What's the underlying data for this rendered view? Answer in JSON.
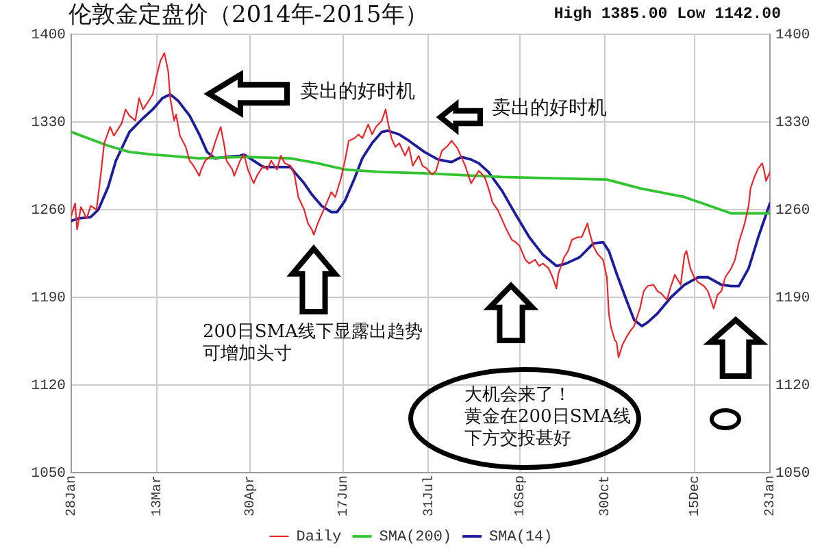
{
  "chart_data": {
    "type": "line",
    "title": "伦敦金定盘价（2014年-2015年）",
    "subtitle": "High 1385.00 Low 1142.00",
    "annotations": [
      "卖出的好时机",
      "卖出的好时机",
      "200日SMA线下显露出趋势可增加头寸",
      "大机会来了！",
      "黄金在200日SMA线下方交投甚好"
    ],
    "xlim": [
      "2014-01-28",
      "2015-01-23"
    ],
    "xticks": [
      {
        "value": "2014-01-28",
        "label": "28Jan"
      },
      {
        "value": "2014-03-13",
        "label": "13Mar"
      },
      {
        "value": "2014-04-30",
        "label": "30Apr"
      },
      {
        "value": "2014-06-17",
        "label": "17Jun"
      },
      {
        "value": "2014-07-31",
        "label": "31Jul"
      },
      {
        "value": "2014-09-16",
        "label": "16Sep"
      },
      {
        "value": "2014-10-30",
        "label": "30Oct"
      },
      {
        "value": "2014-12-15",
        "label": "15Dec"
      },
      {
        "value": "2015-01-23",
        "label": "23Jan"
      }
    ],
    "ylim": [
      1050,
      1400
    ],
    "yticks": [
      1050,
      1120,
      1190,
      1260,
      1330,
      1400
    ],
    "y2lim": [
      1050,
      1400
    ],
    "y2ticks": [
      1050,
      1120,
      1190,
      1260,
      1330,
      1400
    ],
    "grid": true,
    "legend": "bottom",
    "series": [
      {
        "name": "Daily",
        "color": "#e8262b",
        "x": [
          "2014-01-28",
          "2014-01-30",
          "2014-01-31",
          "2014-02-02",
          "2014-02-05",
          "2014-02-07",
          "2014-02-10",
          "2014-02-12",
          "2014-02-14",
          "2014-02-17",
          "2014-02-19",
          "2014-02-23",
          "2014-02-25",
          "2014-02-27",
          "2014-03-02",
          "2014-03-04",
          "2014-03-06",
          "2014-03-09",
          "2014-03-11",
          "2014-03-13",
          "2014-03-15",
          "2014-03-17",
          "2014-03-19",
          "2014-03-20",
          "2014-03-22",
          "2014-03-23",
          "2014-03-25",
          "2014-03-28",
          "2014-03-30",
          "2014-04-01",
          "2014-04-04",
          "2014-04-05",
          "2014-04-07",
          "2014-04-10",
          "2014-04-12",
          "2014-04-14",
          "2014-04-15",
          "2014-04-17",
          "2014-04-18",
          "2014-04-21",
          "2014-04-22",
          "2014-04-25",
          "2014-04-27",
          "2014-04-29",
          "2014-05-02",
          "2014-05-04",
          "2014-05-07",
          "2014-05-09",
          "2014-05-11",
          "2014-05-14",
          "2014-05-16",
          "2014-05-18",
          "2014-05-21",
          "2014-05-23",
          "2014-05-25",
          "2014-05-28",
          "2014-05-30",
          "2014-06-01",
          "2014-06-02",
          "2014-06-04",
          "2014-06-06",
          "2014-06-08",
          "2014-06-11",
          "2014-06-13",
          "2014-06-16",
          "2014-06-18",
          "2014-06-20",
          "2014-06-23",
          "2014-06-25",
          "2014-06-27",
          "2014-06-30",
          "2014-07-02",
          "2014-07-04",
          "2014-07-07",
          "2014-07-09",
          "2014-07-10",
          "2014-07-12",
          "2014-07-14",
          "2014-07-16",
          "2014-07-19",
          "2014-07-21",
          "2014-07-23",
          "2014-07-26",
          "2014-07-28",
          "2014-07-30",
          "2014-08-02",
          "2014-08-04",
          "2014-08-06",
          "2014-08-07",
          "2014-08-10",
          "2014-08-12",
          "2014-08-15",
          "2014-08-17",
          "2014-08-19",
          "2014-08-22",
          "2014-08-24",
          "2014-08-26",
          "2014-08-29",
          "2014-08-31",
          "2014-09-02",
          "2014-09-05",
          "2014-09-07",
          "2014-09-09",
          "2014-09-12",
          "2014-09-14",
          "2014-09-16",
          "2014-09-19",
          "2014-09-21",
          "2014-09-24",
          "2014-09-26",
          "2014-09-28",
          "2014-10-01",
          "2014-10-03",
          "2014-10-05",
          "2014-10-06",
          "2014-10-09",
          "2014-10-11",
          "2014-10-13",
          "2014-10-16",
          "2014-10-18",
          "2014-10-21",
          "2014-10-22",
          "2014-10-24",
          "2014-10-26",
          "2014-10-29",
          "2014-10-31",
          "2014-11-01",
          "2014-11-02",
          "2014-11-04",
          "2014-11-05",
          "2014-11-06",
          "2014-11-08",
          "2014-11-10",
          "2014-11-12",
          "2014-11-14",
          "2014-11-17",
          "2014-11-19",
          "2014-11-21",
          "2014-11-24",
          "2014-11-26",
          "2014-11-28",
          "2014-12-01",
          "2014-12-03",
          "2014-12-05",
          "2014-12-08",
          "2014-12-10",
          "2014-12-11",
          "2014-12-13",
          "2014-12-15",
          "2014-12-17",
          "2014-12-20",
          "2014-12-22",
          "2014-12-24",
          "2014-12-25",
          "2014-12-27",
          "2014-12-29",
          "2014-12-31",
          "2015-01-03",
          "2015-01-05",
          "2015-01-07",
          "2015-01-10",
          "2015-01-12",
          "2015-01-13",
          "2015-01-15",
          "2015-01-17",
          "2015-01-19",
          "2015-01-20",
          "2015-01-21",
          "2015-01-23"
        ],
        "values": [
          1255,
          1265,
          1244,
          1262,
          1253,
          1263,
          1260,
          1285,
          1313,
          1326,
          1319,
          1329,
          1340,
          1335,
          1331,
          1349,
          1340,
          1347,
          1352,
          1367,
          1379,
          1385,
          1370,
          1349,
          1331,
          1336,
          1319,
          1310,
          1299,
          1295,
          1287,
          1292,
          1299,
          1303,
          1313,
          1322,
          1326,
          1310,
          1299,
          1292,
          1287,
          1299,
          1304,
          1292,
          1281,
          1288,
          1295,
          1292,
          1299,
          1292,
          1303,
          1297,
          1295,
          1288,
          1270,
          1260,
          1249,
          1244,
          1240,
          1249,
          1256,
          1263,
          1274,
          1270,
          1285,
          1299,
          1315,
          1317,
          1320,
          1317,
          1328,
          1320,
          1326,
          1331,
          1340,
          1331,
          1317,
          1310,
          1313,
          1303,
          1310,
          1295,
          1303,
          1295,
          1293,
          1288,
          1291,
          1302,
          1307,
          1311,
          1315,
          1309,
          1302,
          1295,
          1281,
          1286,
          1291,
          1286,
          1277,
          1266,
          1259,
          1252,
          1245,
          1236,
          1234,
          1231,
          1220,
          1217,
          1220,
          1215,
          1217,
          1213,
          1206,
          1197,
          1209,
          1222,
          1227,
          1236,
          1238,
          1238,
          1249,
          1242,
          1231,
          1225,
          1220,
          1206,
          1177,
          1167,
          1156,
          1154,
          1142,
          1152,
          1158,
          1163,
          1167,
          1181,
          1195,
          1199,
          1200,
          1195,
          1193,
          1188,
          1199,
          1208,
          1200,
          1224,
          1227,
          1213,
          1206,
          1202,
          1199,
          1195,
          1186,
          1181,
          1192,
          1195,
          1206,
          1213,
          1220,
          1234,
          1249,
          1263,
          1277,
          1286,
          1293,
          1297,
          1291,
          1283,
          1290
        ]
      },
      {
        "name": "SMA(200)",
        "color": "#33c433",
        "x": [
          "2014-01-28",
          "2014-02-16",
          "2014-02-27",
          "2014-03-11",
          "2014-04-04",
          "2014-04-27",
          "2014-05-21",
          "2014-06-04",
          "2014-06-18",
          "2014-07-07",
          "2014-07-28",
          "2014-09-07",
          "2014-10-31",
          "2014-11-17",
          "2014-12-10",
          "2015-01-03",
          "2015-01-23"
        ],
        "values": [
          1322,
          1311,
          1306,
          1304,
          1301,
          1302,
          1301,
          1297,
          1292,
          1290,
          1289,
          1286,
          1284,
          1277,
          1270,
          1257,
          1257
        ]
      },
      {
        "name": "SMA(14)",
        "color": "#1c1c9c",
        "x": [
          "2014-01-28",
          "2014-02-01",
          "2014-02-07",
          "2014-02-11",
          "2014-02-16",
          "2014-02-20",
          "2014-02-27",
          "2014-03-06",
          "2014-03-11",
          "2014-03-16",
          "2014-03-20",
          "2014-03-24",
          "2014-03-30",
          "2014-04-04",
          "2014-04-08",
          "2014-04-12",
          "2014-04-18",
          "2014-04-25",
          "2014-04-27",
          "2014-05-02",
          "2014-05-07",
          "2014-05-14",
          "2014-05-21",
          "2014-05-23",
          "2014-05-28",
          "2014-06-01",
          "2014-06-06",
          "2014-06-11",
          "2014-06-14",
          "2014-06-18",
          "2014-06-23",
          "2014-06-27",
          "2014-07-02",
          "2014-07-07",
          "2014-07-10",
          "2014-07-16",
          "2014-07-21",
          "2014-07-29",
          "2014-08-05",
          "2014-08-12",
          "2014-08-17",
          "2014-08-22",
          "2014-08-26",
          "2014-08-31",
          "2014-09-07",
          "2014-09-14",
          "2014-09-21",
          "2014-09-28",
          "2014-10-05",
          "2014-10-10",
          "2014-10-17",
          "2014-10-24",
          "2014-10-29",
          "2014-11-01",
          "2014-11-05",
          "2014-11-10",
          "2014-11-14",
          "2014-11-18",
          "2014-11-21",
          "2014-11-26",
          "2014-12-03",
          "2014-12-10",
          "2014-12-17",
          "2014-12-22",
          "2014-12-29",
          "2015-01-03",
          "2015-01-07",
          "2015-01-12",
          "2015-01-17",
          "2015-01-23"
        ],
        "values": [
          1251,
          1253,
          1254,
          1260,
          1278,
          1299,
          1322,
          1333,
          1340,
          1349,
          1352,
          1347,
          1335,
          1320,
          1306,
          1301,
          1302,
          1303,
          1304,
          1299,
          1294,
          1294,
          1294,
          1290,
          1281,
          1272,
          1263,
          1258,
          1258,
          1267,
          1285,
          1301,
          1313,
          1322,
          1323,
          1320,
          1315,
          1306,
          1300,
          1298,
          1302,
          1300,
          1297,
          1290,
          1275,
          1256,
          1238,
          1224,
          1215,
          1217,
          1222,
          1233,
          1234,
          1227,
          1209,
          1188,
          1172,
          1167,
          1170,
          1177,
          1190,
          1200,
          1206,
          1206,
          1200,
          1199,
          1199,
          1213,
          1238,
          1265
        ]
      }
    ]
  }
}
